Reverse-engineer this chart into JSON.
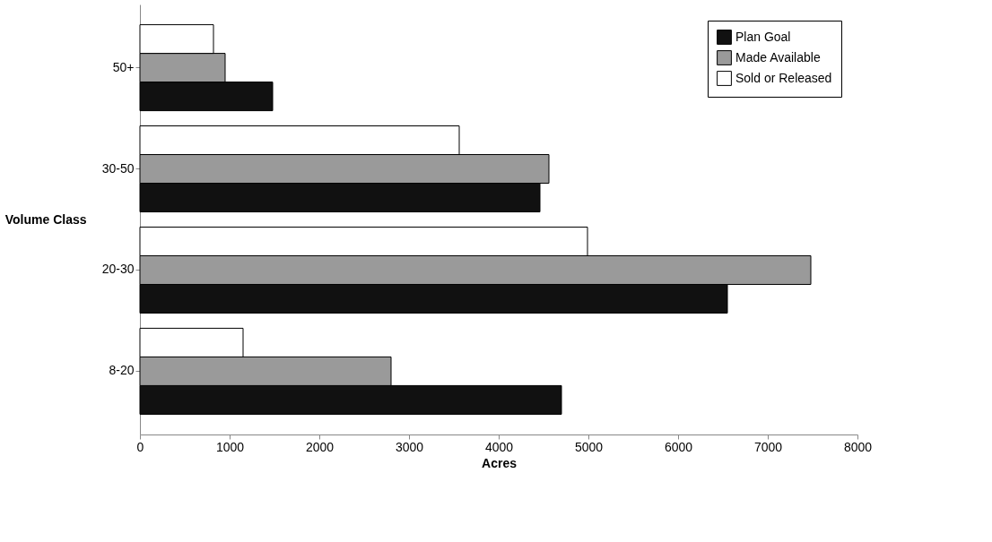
{
  "chart_data": {
    "type": "bar",
    "orientation": "horizontal",
    "xlabel": "Acres",
    "ylabel": "Volume Class",
    "categories": [
      "50+",
      "30-50",
      "20-30",
      "8-20"
    ],
    "series": [
      {
        "name": "Plan Goal",
        "color": "#111111",
        "values": [
          1480,
          4460,
          6550,
          4700
        ]
      },
      {
        "name": "Made Available",
        "color": "#9a9a9a",
        "values": [
          950,
          4560,
          7480,
          2800
        ]
      },
      {
        "name": "Sold or Released",
        "color": "#ffffff",
        "values": [
          820,
          3560,
          4990,
          1150
        ]
      }
    ],
    "xlim": [
      0,
      8000
    ],
    "xticks": [
      0,
      1000,
      2000,
      3000,
      4000,
      5000,
      6000,
      7000,
      8000
    ],
    "grid": false,
    "legend": "top right"
  }
}
